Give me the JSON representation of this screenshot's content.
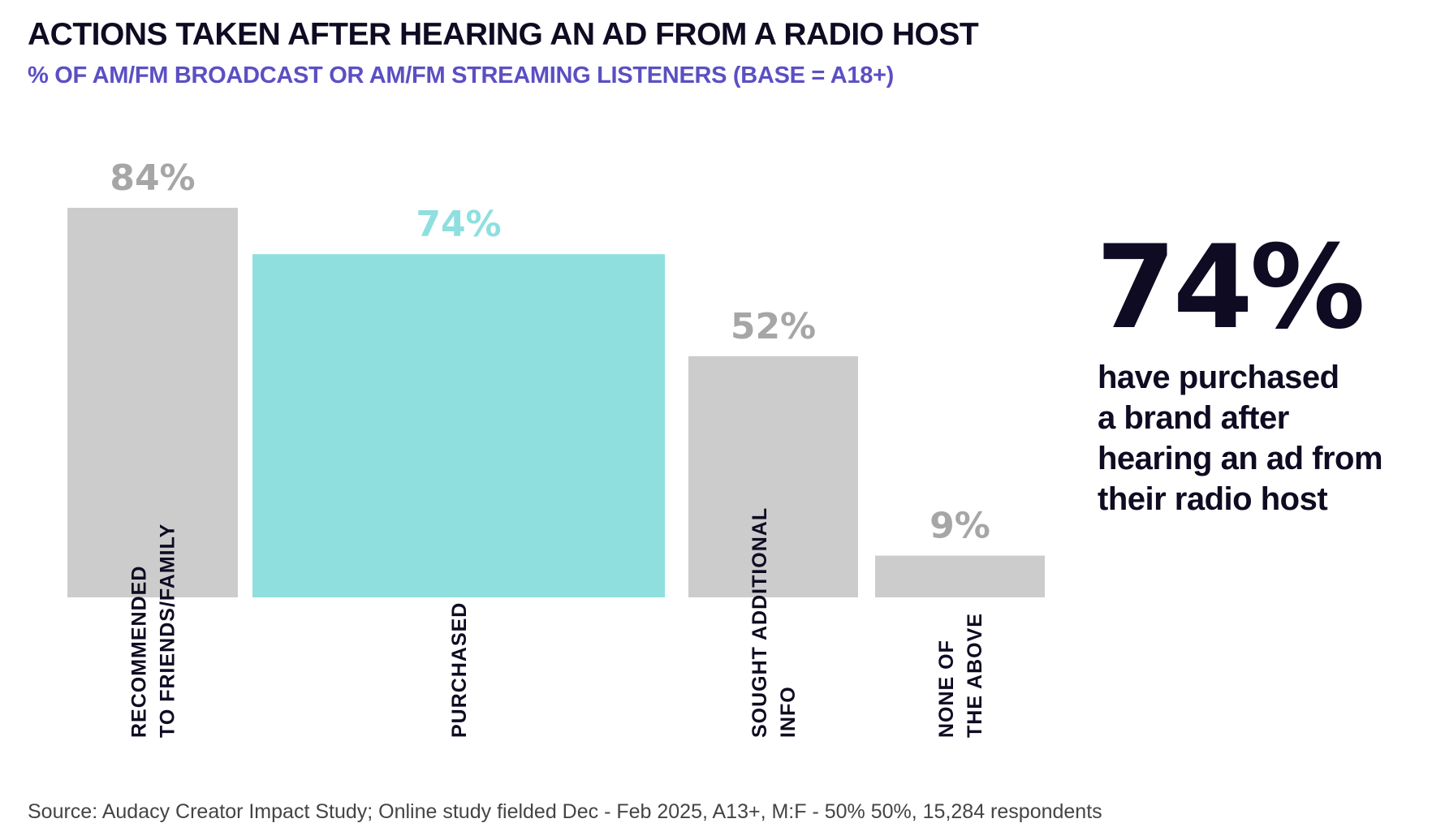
{
  "chart_data": {
    "type": "bar",
    "title": "ACTIONS TAKEN AFTER HEARING AN AD FROM A RADIO HOST",
    "subtitle": "% OF AM/FM BROADCAST OR AM/FM STREAMING LISTENERS (BASE = A18+)",
    "categories": [
      [
        "RECOMMENDED",
        "TO FRIENDS/FAMILY"
      ],
      [
        "PURCHASED"
      ],
      [
        "SOUGHT ADDITIONAL",
        "INFO"
      ],
      [
        "NONE OF",
        "THE ABOVE"
      ]
    ],
    "values": [
      84,
      74,
      52,
      9
    ],
    "data_labels": [
      "84%",
      "74%",
      "52%",
      "9%"
    ],
    "highlight_index": 1,
    "ylim": [
      0,
      84
    ],
    "grid": false,
    "colors": {
      "default": "#cccccc",
      "highlight": "#8fdfdf",
      "default_label": "#a6a6a6",
      "highlight_label": "#8fdfdf"
    }
  },
  "callout": {
    "value": "74%",
    "lines": [
      "have purchased",
      "a brand after",
      "hearing an ad from",
      "their radio host"
    ]
  },
  "source": "Source: Audacy Creator Impact Study; Online study fielded Dec - Feb 2025, A13+, M:F - 50% 50%, 15,284 respondents"
}
